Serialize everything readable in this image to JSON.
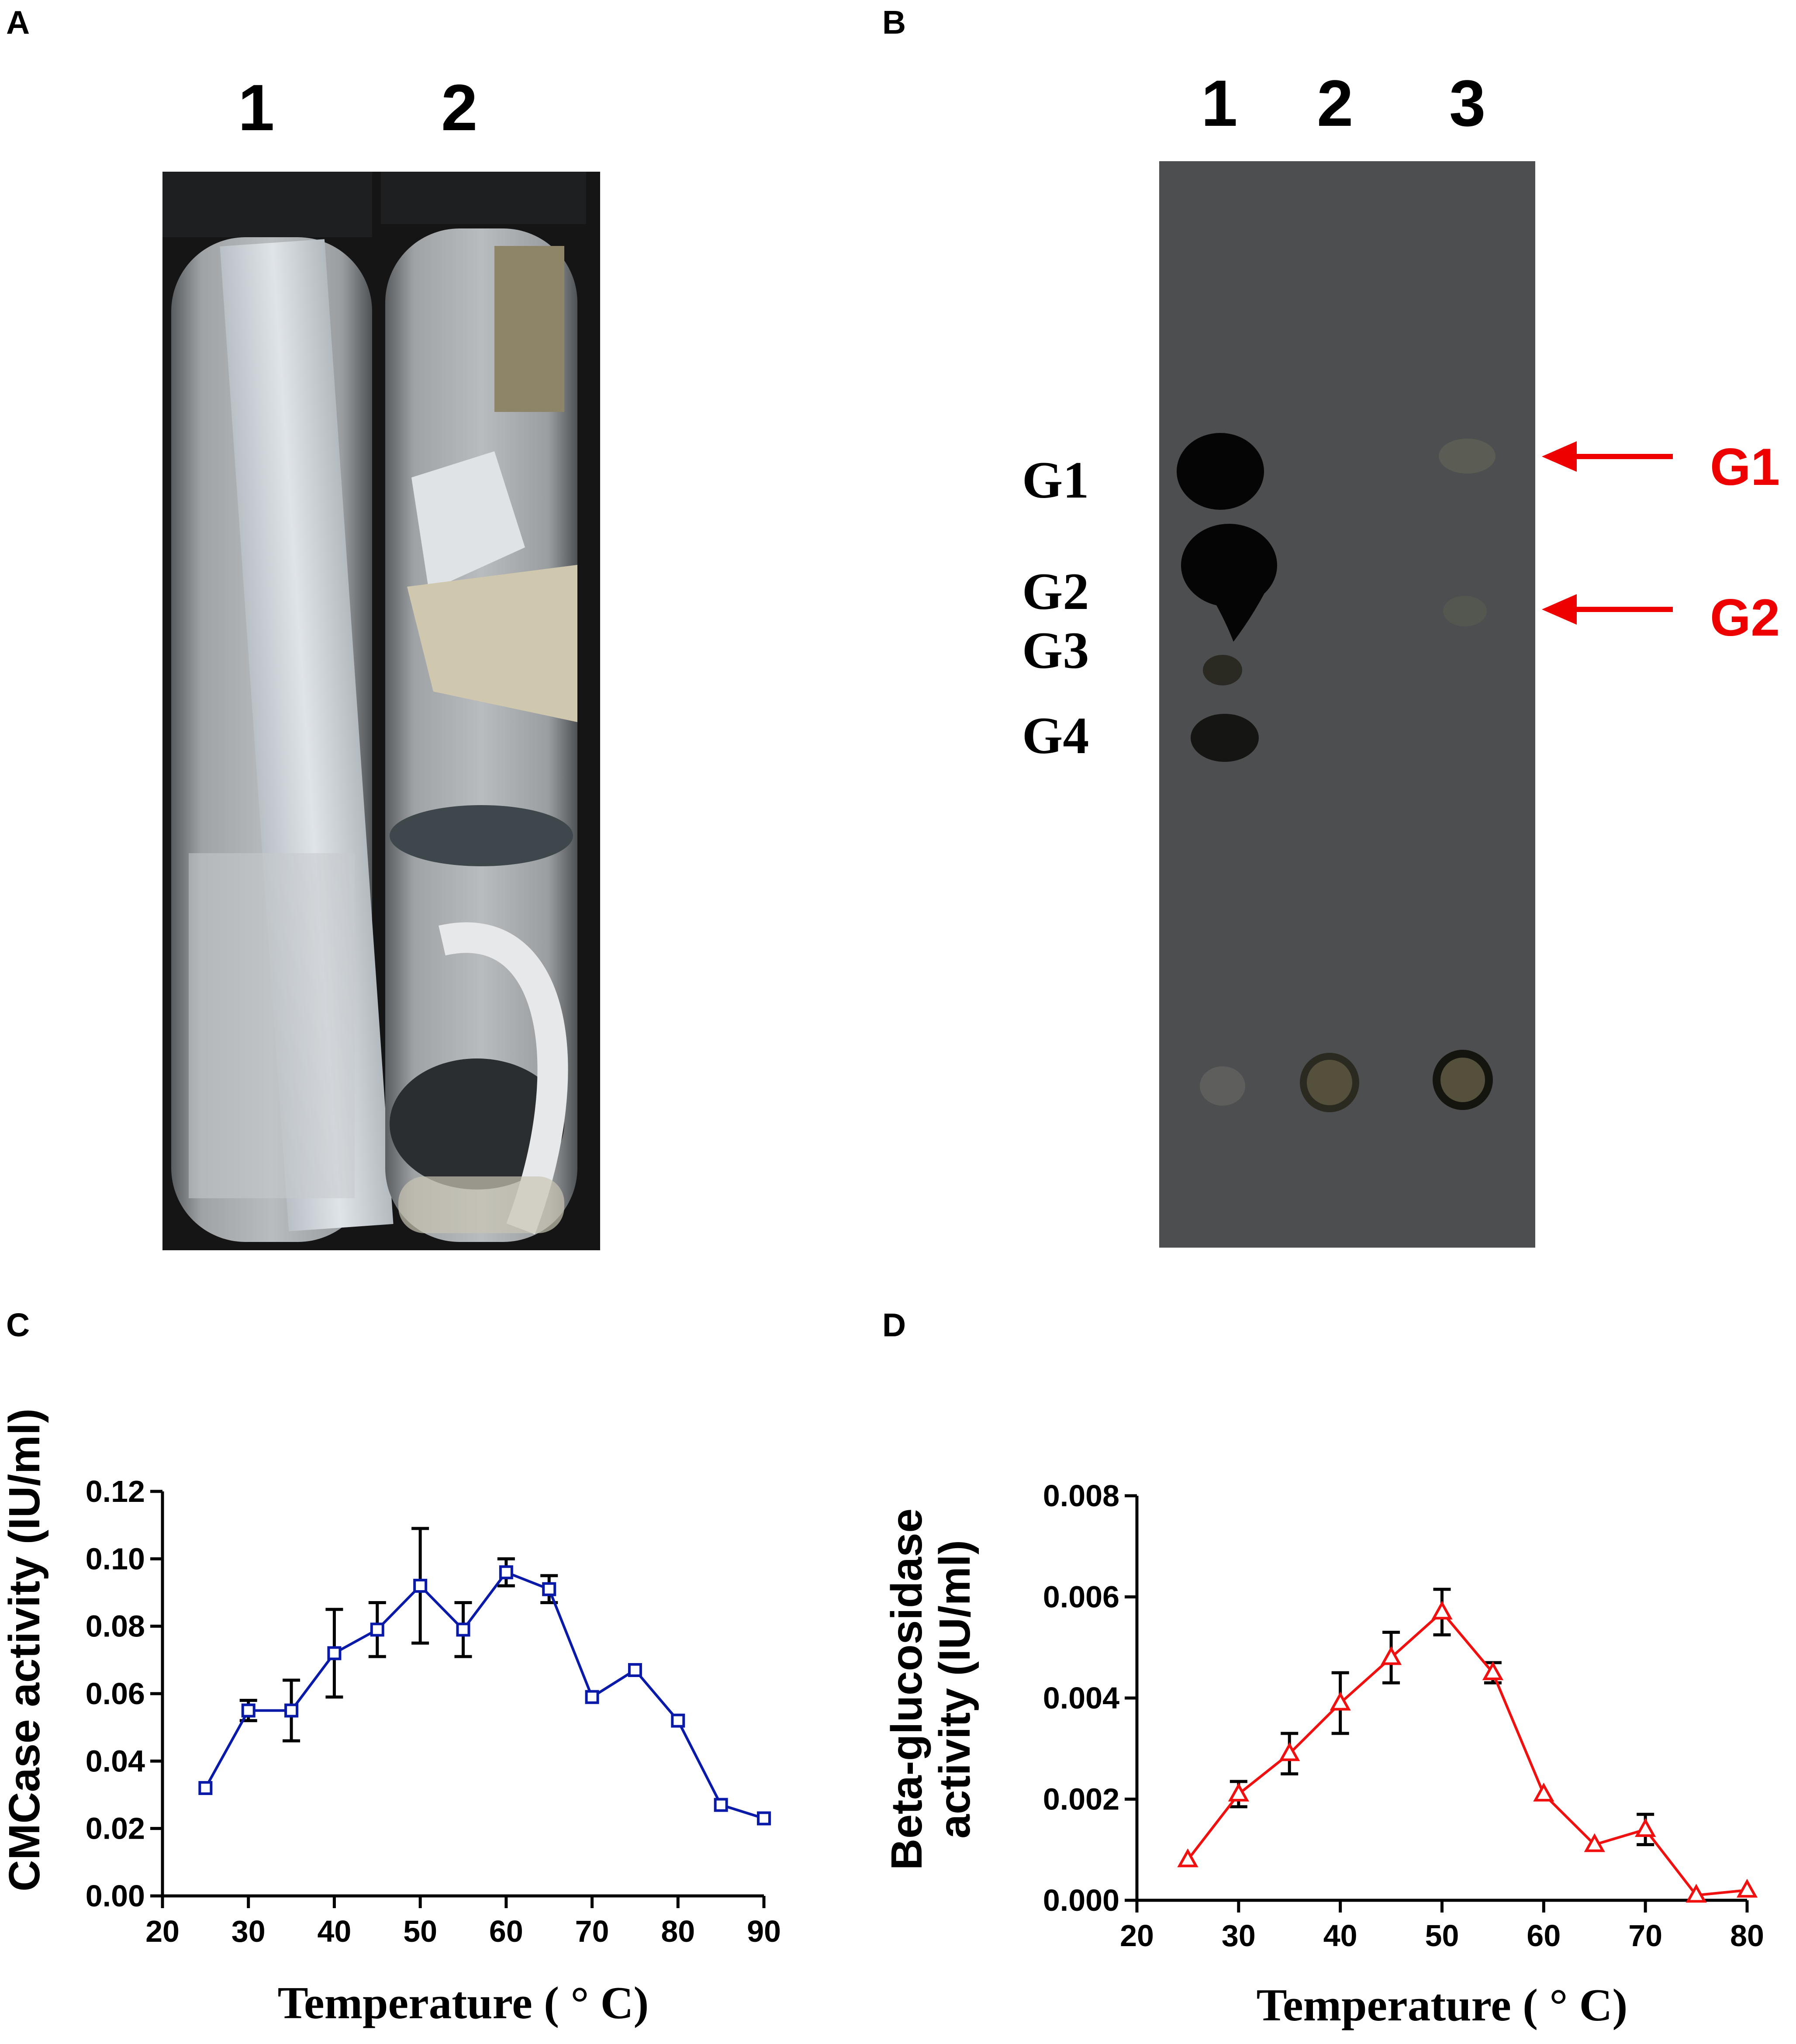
{
  "panels": {
    "A": {
      "letter": "A",
      "tube_labels": [
        "1",
        "2"
      ]
    },
    "B": {
      "letter": "B",
      "lane_labels": [
        "1",
        "2",
        "3"
      ],
      "band_labels": [
        "G1",
        "G2",
        "G3",
        "G4"
      ],
      "arrow_labels": [
        "G1",
        "G2"
      ]
    },
    "C": {
      "letter": "C"
    },
    "D": {
      "letter": "D"
    }
  },
  "colors": {
    "blue_series": "#0a1aa8",
    "red_series": "#f01010",
    "error_bar": "#000000",
    "arrow": "#ef0000"
  },
  "chart_data": [
    {
      "panel": "C",
      "type": "line",
      "xlabel": "Temperature ( ° C)",
      "ylabel": "CMCase activity (IU/ml)",
      "xlim": [
        20,
        90
      ],
      "ylim": [
        0.0,
        0.12
      ],
      "xticks": [
        "20",
        "30",
        "40",
        "50",
        "60",
        "70",
        "80",
        "90"
      ],
      "yticks": [
        "0.00",
        "0.02",
        "0.04",
        "0.06",
        "0.08",
        "0.10",
        "0.12"
      ],
      "marker": "square",
      "grid": false,
      "series": [
        {
          "x": [
            25,
            30,
            35,
            40,
            45,
            50,
            55,
            60,
            65,
            70,
            75,
            80,
            85,
            90
          ],
          "y": [
            0.032,
            0.055,
            0.055,
            0.072,
            0.079,
            0.092,
            0.079,
            0.096,
            0.091,
            0.059,
            0.067,
            0.052,
            0.027,
            0.023
          ],
          "err": [
            0.0,
            0.003,
            0.009,
            0.013,
            0.008,
            0.017,
            0.008,
            0.004,
            0.004,
            0.0,
            0.0,
            0.0,
            0.0,
            0.0
          ]
        }
      ]
    },
    {
      "panel": "D",
      "type": "line",
      "xlabel": "Temperature ( ° C)",
      "ylabel_lines": [
        "Beta-glucosidase",
        "activity (IU/ml)"
      ],
      "xlim": [
        20,
        80
      ],
      "ylim": [
        0.0,
        0.008
      ],
      "xticks": [
        "20",
        "30",
        "40",
        "50",
        "60",
        "70",
        "80"
      ],
      "yticks": [
        "0.000",
        "0.002",
        "0.004",
        "0.006",
        "0.008"
      ],
      "marker": "triangle",
      "grid": false,
      "series": [
        {
          "x": [
            25,
            30,
            35,
            40,
            45,
            50,
            55,
            60,
            65,
            70,
            75,
            80
          ],
          "y": [
            0.0008,
            0.0021,
            0.0029,
            0.0039,
            0.0048,
            0.0057,
            0.0045,
            0.0021,
            0.0011,
            0.0014,
            0.0001,
            0.0002
          ],
          "err": [
            0.0,
            0.00025,
            0.0004,
            0.0006,
            0.0005,
            0.00045,
            0.0002,
            0.0,
            0.0,
            0.0003,
            0.0,
            0.0
          ]
        }
      ]
    }
  ]
}
